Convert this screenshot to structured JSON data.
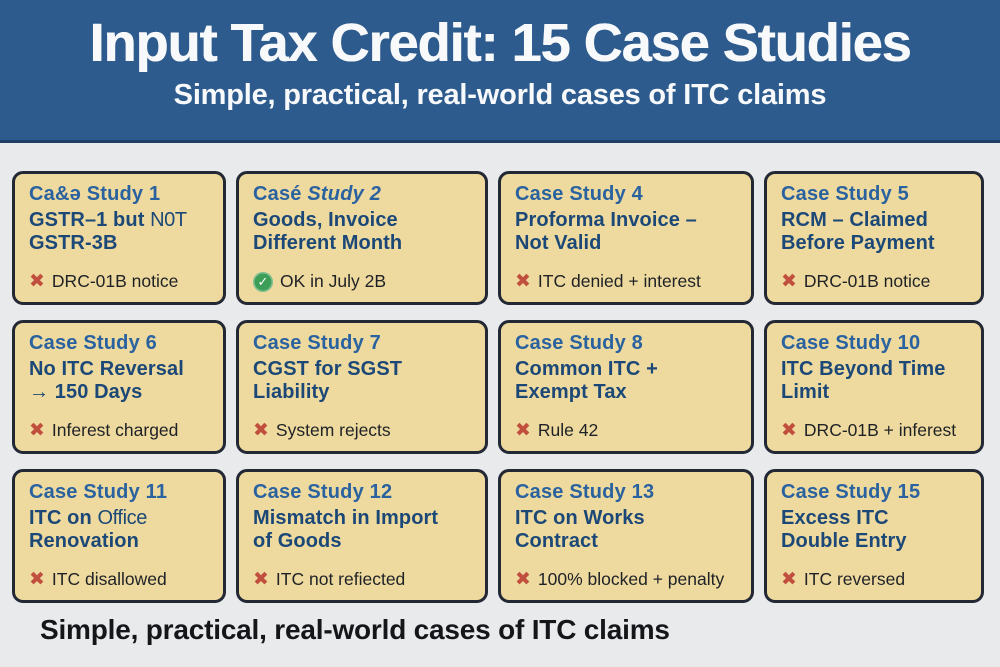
{
  "header": {
    "title": "Input Tax Credit: 15 Case Studies",
    "subtitle": "Simple, practical, real-world cases of ITC claims"
  },
  "footer": {
    "caption": "Simple, practical, real-world cases of ITC claims"
  },
  "icons": {
    "cross": "✖",
    "check": "✓"
  },
  "colors": {
    "header_bg": "#2e5b8d",
    "header_rule": "#1f4064",
    "page_bg": "#e9eaec",
    "card_bg": "#eeda9e",
    "card_border": "#222834",
    "title_blue": "#2a62a0",
    "subtitle_navy": "#1c4878",
    "status_text": "#1e2126",
    "cross_red": "#c14f3e",
    "check_green": "#3d9e58",
    "header_text": "#f7f9fb",
    "footer_text": "#141619"
  },
  "cards": [
    {
      "title": "Ca&ǝ Study 1",
      "sub1": "GSTR–1 but",
      "sub1_alt": "N0T",
      "sub2": "GSTR-3B",
      "status": "DRC-01B notice",
      "icon": "cross"
    },
    {
      "title": "Casé",
      "title_italic": "Study 2",
      "sub1": "Goods, Invoice",
      "sub2": "Different Month",
      "status": "OK in July 2B",
      "icon": "check"
    },
    {
      "title": "Case Study 4",
      "sub1": "Proforma Invoice –",
      "sub2": "Not Valid",
      "status": "ITC denied + interest",
      "icon": "cross"
    },
    {
      "title": "Case Study 5",
      "sub1": "RCM – Claimed",
      "sub2": "Before Payment",
      "status": "DRC-01B notice",
      "icon": "cross"
    },
    {
      "title": "Case Study 6",
      "sub1": "No ITC Reversal",
      "sub2_arrow": "→",
      "sub2": "150 Days",
      "status": "Inferest charged",
      "icon": "cross"
    },
    {
      "title": "Case Study 7",
      "sub1": "CGST for SGST",
      "sub2": "Liability",
      "status": "System rejects",
      "icon": "cross"
    },
    {
      "title": "Case Study 8",
      "sub1": "Common ITC +",
      "sub2": "Exempt Tax",
      "status": "Rule 42",
      "icon": "cross"
    },
    {
      "title": "Case Study 10",
      "sub1": "ITC Beyond Time",
      "sub2": "Limit",
      "status": "DRC-01B + inferest",
      "icon": "cross"
    },
    {
      "title": "Case Study 11",
      "sub1": "ITC on",
      "sub1_alt": "Office",
      "sub2": "Renovation",
      "status": "ITC disallowed",
      "icon": "cross"
    },
    {
      "title": "Case Study 12",
      "sub1": "Mismatch in Import",
      "sub2": "of Goods",
      "status": "ITC not refiected",
      "icon": "cross"
    },
    {
      "title": "Case Study 13",
      "sub1": "ITC on Works",
      "sub2": "Contract",
      "status": "100% blocked + penalty",
      "icon": "cross"
    },
    {
      "title": "Case Study 15",
      "sub1": "Excess ITC",
      "sub2": "Double Entry",
      "status": "ITC reversed",
      "icon": "cross"
    }
  ]
}
